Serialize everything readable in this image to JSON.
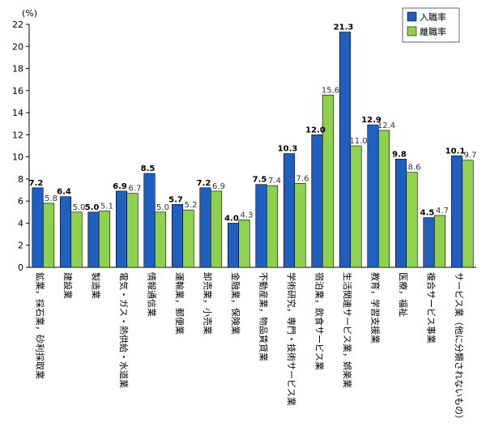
{
  "chart_data": {
    "type": "bar",
    "unit_label": "(%)",
    "ylim": [
      0,
      22
    ],
    "yticks": [
      0,
      2,
      4,
      6,
      8,
      10,
      12,
      14,
      16,
      18,
      20,
      22
    ],
    "grid": false,
    "legend_position": "top-right",
    "categories": [
      "鉱業，採石業，砂利採取業",
      "建設業",
      "製造業",
      "電気・ガス・熱供給・水道業",
      "情報通信業",
      "運輸業，郵便業",
      "卸売業，小売業",
      "金融業，保険業",
      "不動産業，物品賃貸業",
      "学術研究，専門・技術サービス業",
      "宿泊業，飲食サービス業",
      "生活関連サービス業，娯楽業",
      "教育，学習支援業",
      "医療，福祉",
      "複合サービス事業",
      "サービス業（他に分類されないもの）"
    ],
    "series": [
      {
        "name": "入職率",
        "color": "#1f5fbf",
        "values": [
          7.2,
          6.4,
          5.0,
          6.9,
          8.5,
          5.7,
          7.2,
          4.0,
          7.5,
          10.3,
          12.0,
          21.3,
          12.9,
          9.8,
          4.5,
          10.1
        ],
        "labels": [
          "7.2",
          "6.4",
          "5.0",
          "6.9",
          "8.5",
          "5.7",
          "7.2",
          "4.0",
          "7.5",
          "10.3",
          "12.0",
          "21.3",
          "12.9",
          "9.8",
          "4.5",
          "10.1"
        ]
      },
      {
        "name": "離職率",
        "color": "#8fd14f",
        "values": [
          5.8,
          5.0,
          5.1,
          6.7,
          5.0,
          5.2,
          6.9,
          4.3,
          7.4,
          7.6,
          15.6,
          11.0,
          12.4,
          8.6,
          4.7,
          9.7
        ],
        "labels": [
          "5.8",
          "5.0",
          "5.1",
          "6.7",
          "5.0",
          "5.2",
          "6.9",
          "4.3",
          "7.4",
          "7.6",
          "15.6",
          "11.0",
          "12.4",
          "8.6",
          "4.7",
          "9.7"
        ]
      }
    ]
  }
}
